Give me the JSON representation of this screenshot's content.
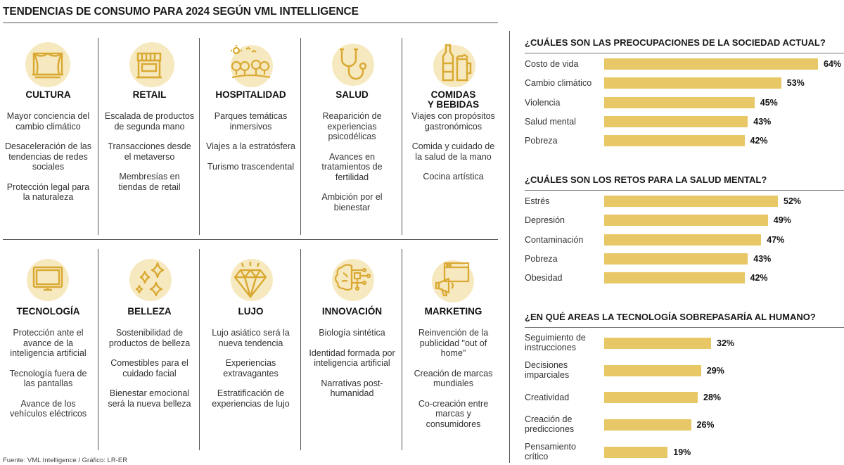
{
  "title": "TENDENCIAS DE CONSUMO PARA 2024 SEGÚN VML INTELLIGENCE",
  "source": "Fuente: VML Intelligence / Gráfico: LR-ER",
  "colors": {
    "accent": "#e8c766",
    "icon_bg": "#f7e9bf",
    "icon_stroke": "#d9a934"
  },
  "sectors": [
    {
      "icon": "theater-stage-icon",
      "name": "CULTURA",
      "items": [
        "Mayor conciencia del cambio climático",
        "Desaceleración de las tendencias de redes sociales",
        "Protección legal para la naturaleza"
      ]
    },
    {
      "icon": "storefront-icon",
      "name": "RETAIL",
      "items": [
        "Escalada de productos de segunda mano",
        "Transacciones desde el metaverso",
        "Membresías en tiendas de retail"
      ]
    },
    {
      "icon": "landscape-park-icon",
      "name": "HOSPITALIDAD",
      "items": [
        "Parques temáticas inmersivos",
        "Viajes a la estratósfera",
        "Turismo trascendental"
      ]
    },
    {
      "icon": "stethoscope-icon",
      "name": "SALUD",
      "items": [
        "Reaparición de experiencias psicodélicas",
        "Avances en tratamientos de fertilidad",
        "Ambición por el bienestar"
      ]
    },
    {
      "icon": "bottle-beer-icon",
      "name": "COMIDAS Y BEBIDAS",
      "name_line1": "COMIDAS",
      "name_line2": "Y BEBIDAS",
      "items": [
        "Viajes con propósitos gastronómicos",
        "Comida y cuidado de la salud de la mano",
        "Cocina artística"
      ]
    },
    {
      "icon": "monitor-icon",
      "name": "TECNOLOGÍA",
      "items": [
        "Protección ante el avance de la inteligencia artificial",
        "Tecnología fuera de las pantallas",
        "Avance de los vehículos eléctricos"
      ]
    },
    {
      "icon": "sparkles-icon",
      "name": "BELLEZA",
      "items": [
        "Sostenibilidad de productos de belleza",
        "Comestibles para el cuidado facial",
        "Bienestar emocional será la nueva belleza"
      ]
    },
    {
      "icon": "diamond-icon",
      "name": "LUJO",
      "items": [
        "Lujo asiático será la nueva tendencia",
        "Experiencias extravagantes",
        "Estratificación de experiencias de lujo"
      ]
    },
    {
      "icon": "brain-circuit-icon",
      "name": "INNOVACIÓN",
      "items": [
        "Biología sintética",
        "Identidad formada por inteligencia artificial",
        "Narrativas post-humanidad"
      ]
    },
    {
      "icon": "megaphone-icon",
      "name": "MARKETING",
      "items": [
        "Reinvención de la publicidad \"out of home\"",
        "Creación de marcas mundiales",
        "Co-creación entre marcas y consumidores"
      ]
    }
  ],
  "chart_data": [
    {
      "type": "bar",
      "title": "¿CUÁLES SON LAS PREOCUPACIONES DE LA SOCIEDAD ACTUAL?",
      "categories": [
        "Costo de vida",
        "Cambio climático",
        "Violencia",
        "Salud mental",
        "Pobreza"
      ],
      "values": [
        64,
        53,
        45,
        43,
        42
      ],
      "value_labels": [
        "64%",
        "53%",
        "45%",
        "43%",
        "42%"
      ],
      "unit": "%"
    },
    {
      "type": "bar",
      "title": "¿CUÁLES SON LOS RETOS PARA LA SALUD MENTAL?",
      "categories": [
        "Estrés",
        "Depresión",
        "Contaminación",
        "Pobreza",
        "Obesidad"
      ],
      "values": [
        52,
        49,
        47,
        43,
        42
      ],
      "value_labels": [
        "52%",
        "49%",
        "47%",
        "43%",
        "42%"
      ],
      "unit": "%"
    },
    {
      "type": "bar",
      "title": "¿EN QUÉ AREAS LA TECNOLOGÍA SOBREPASARÍA AL HUMANO?",
      "categories": [
        "Seguimiento de instrucciones",
        "Decisiones imparciales",
        "Creatividad",
        "Creación de predicciones",
        "Pensamiento crítico"
      ],
      "category_lines": [
        [
          "Seguimiento de",
          "instrucciones"
        ],
        [
          "Decisiones",
          "imparciales"
        ],
        [
          "Creatividad"
        ],
        [
          "Creación de",
          "predicciones"
        ],
        [
          "Pensamiento",
          "crítico"
        ]
      ],
      "values": [
        32,
        29,
        28,
        26,
        19
      ],
      "value_labels": [
        "32%",
        "29%",
        "28%",
        "26%",
        "19%"
      ],
      "unit": "%"
    }
  ]
}
